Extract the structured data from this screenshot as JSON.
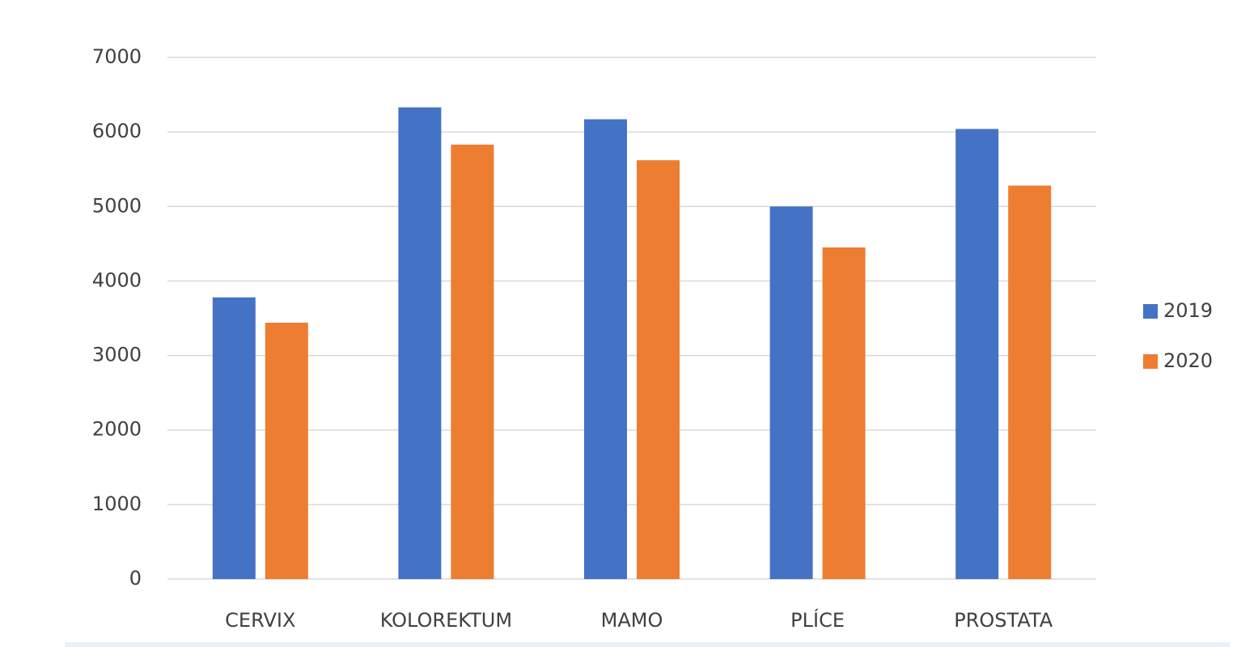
{
  "chart_data": {
    "type": "bar",
    "categories": [
      "CERVIX",
      "KOLOREKTUM",
      "MAMO",
      "PLÍCE",
      "PROSTATA"
    ],
    "series": [
      {
        "name": "2019",
        "color": "#4472c4",
        "values": [
          3780,
          6330,
          6170,
          5000,
          6040
        ]
      },
      {
        "name": "2020",
        "color": "#ed7d31",
        "values": [
          3440,
          5830,
          5620,
          4450,
          5280
        ]
      }
    ],
    "ylim": [
      0,
      7000
    ],
    "yticks": [
      0,
      1000,
      2000,
      3000,
      4000,
      5000,
      6000,
      7000
    ],
    "grid": true,
    "legend": "right"
  }
}
